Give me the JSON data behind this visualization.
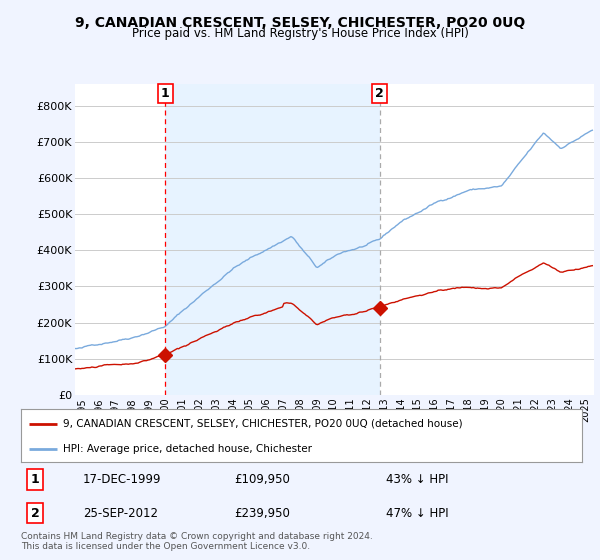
{
  "title": "9, CANADIAN CRESCENT, SELSEY, CHICHESTER, PO20 0UQ",
  "subtitle": "Price paid vs. HM Land Registry's House Price Index (HPI)",
  "ylabel_ticks": [
    "£0",
    "£100K",
    "£200K",
    "£300K",
    "£400K",
    "£500K",
    "£600K",
    "£700K",
    "£800K"
  ],
  "ytick_values": [
    0,
    100000,
    200000,
    300000,
    400000,
    500000,
    600000,
    700000,
    800000
  ],
  "ylim": [
    0,
    860000
  ],
  "xlim_start": 1994.6,
  "xlim_end": 2025.5,
  "hpi_color": "#7aaadd",
  "hpi_fill_color": "#ddeeff",
  "price_color": "#cc1100",
  "marker1_date": 1999.96,
  "marker1_price": 109950,
  "marker1_label": "17-DEC-1999",
  "marker1_value_str": "£109,950",
  "marker1_pct": "43% ↓ HPI",
  "marker2_date": 2012.73,
  "marker2_price": 239950,
  "marker2_label": "25-SEP-2012",
  "marker2_value_str": "£239,950",
  "marker2_pct": "47% ↓ HPI",
  "legend_line1": "9, CANADIAN CRESCENT, SELSEY, CHICHESTER, PO20 0UQ (detached house)",
  "legend_line2": "HPI: Average price, detached house, Chichester",
  "footer": "Contains HM Land Registry data © Crown copyright and database right 2024.\nThis data is licensed under the Open Government Licence v3.0.",
  "background_color": "#f0f4ff",
  "plot_bg_color": "#ffffff",
  "grid_color": "#cccccc",
  "shade_color": "#ddeeff"
}
